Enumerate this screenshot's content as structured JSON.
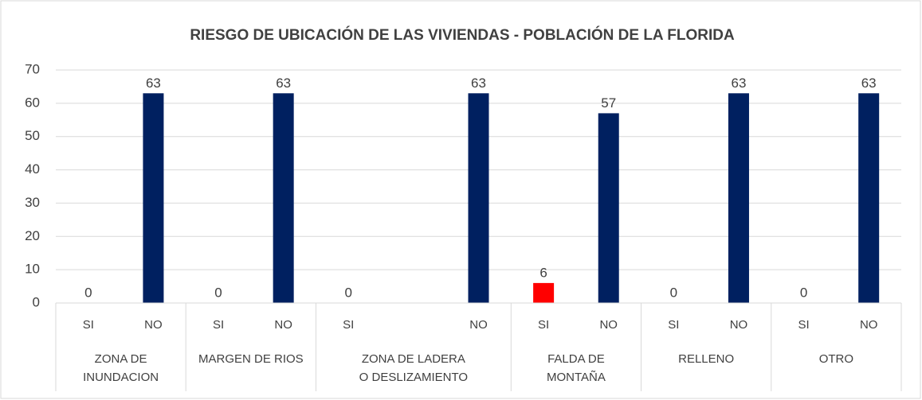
{
  "chart_data": {
    "type": "bar",
    "title": "RIESGO DE UBICACIÓN DE LAS VIVIENDAS - POBLACIÓN DE LA FLORIDA",
    "groups": [
      {
        "name": "ZONA DE INUNDACION",
        "categories": [
          "SI",
          "NO"
        ],
        "values": [
          0,
          63
        ],
        "colors": [
          "#ff0000",
          "#002060"
        ]
      },
      {
        "name": "MARGEN DE RIOS",
        "categories": [
          "SI",
          "NO"
        ],
        "values": [
          0,
          63
        ],
        "colors": [
          "#ff0000",
          "#002060"
        ]
      },
      {
        "name": "ZONA DE LADERA O DESLIZAMIENTO",
        "categories": [
          "SI",
          null,
          "NO"
        ],
        "values": [
          0,
          null,
          63
        ],
        "colors": [
          "#ff0000",
          null,
          "#002060"
        ]
      },
      {
        "name": "FALDA DE MONTAÑA",
        "categories": [
          "SI",
          "NO"
        ],
        "values": [
          6,
          57
        ],
        "colors": [
          "#ff0000",
          "#002060"
        ]
      },
      {
        "name": "RELLENO",
        "categories": [
          "SI",
          "NO"
        ],
        "values": [
          0,
          63
        ],
        "colors": [
          "#ff0000",
          "#002060"
        ]
      },
      {
        "name": "OTRO",
        "categories": [
          "SI",
          "NO"
        ],
        "values": [
          0,
          63
        ],
        "colors": [
          "#ff0000",
          "#002060"
        ]
      }
    ],
    "ylim": [
      0,
      70
    ],
    "yticks": [
      0,
      10,
      20,
      30,
      40,
      50,
      60,
      70
    ],
    "grid": true
  }
}
